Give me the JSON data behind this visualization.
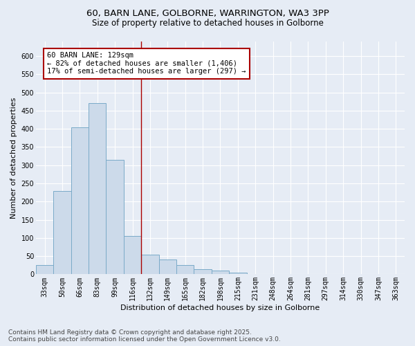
{
  "title": "60, BARN LANE, GOLBORNE, WARRINGTON, WA3 3PP",
  "subtitle": "Size of property relative to detached houses in Golborne",
  "xlabel": "Distribution of detached houses by size in Golborne",
  "ylabel": "Number of detached properties",
  "categories": [
    "33sqm",
    "50sqm",
    "66sqm",
    "83sqm",
    "99sqm",
    "116sqm",
    "132sqm",
    "149sqm",
    "165sqm",
    "182sqm",
    "198sqm",
    "215sqm",
    "231sqm",
    "248sqm",
    "264sqm",
    "281sqm",
    "297sqm",
    "314sqm",
    "330sqm",
    "347sqm",
    "363sqm"
  ],
  "values": [
    25,
    230,
    405,
    470,
    315,
    105,
    55,
    40,
    25,
    15,
    10,
    5,
    0,
    0,
    0,
    0,
    0,
    0,
    0,
    0,
    0
  ],
  "bar_color": "#ccdaea",
  "bar_edge_color": "#7aaac8",
  "property_line_color": "#aa0000",
  "annotation_text": "60 BARN LANE: 129sqm\n← 82% of detached houses are smaller (1,406)\n17% of semi-detached houses are larger (297) →",
  "annotation_box_color": "#ffffff",
  "annotation_box_edge_color": "#aa0000",
  "ylim": [
    0,
    640
  ],
  "yticks": [
    0,
    50,
    100,
    150,
    200,
    250,
    300,
    350,
    400,
    450,
    500,
    550,
    600
  ],
  "bg_color": "#e6ecf5",
  "grid_color": "#ffffff",
  "footer_text": "Contains HM Land Registry data © Crown copyright and database right 2025.\nContains public sector information licensed under the Open Government Licence v3.0.",
  "title_fontsize": 9.5,
  "subtitle_fontsize": 8.5,
  "xlabel_fontsize": 8,
  "ylabel_fontsize": 8,
  "tick_fontsize": 7,
  "annotation_fontsize": 7.5,
  "footer_fontsize": 6.5
}
